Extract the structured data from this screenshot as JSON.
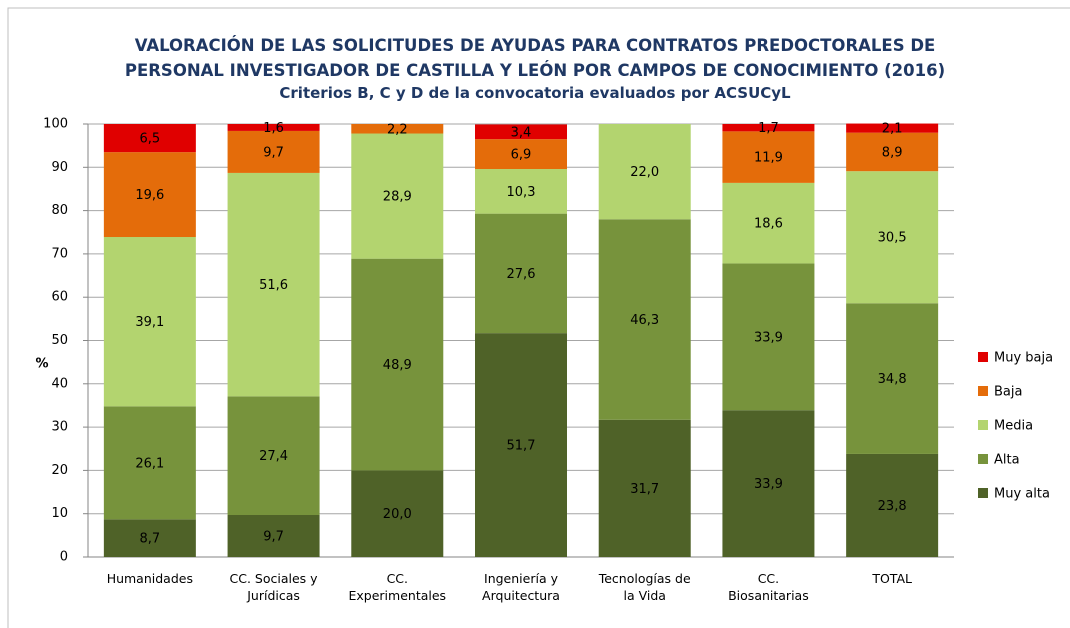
{
  "chart_data": {
    "type": "stacked_bar",
    "title": "VALORACIÓN DE LAS SOLICITUDES DE AYUDAS PARA CONTRATOS PREDOCTORALES DE PERSONAL INVESTIGADOR DE CASTILLA Y LEÓN POR CAMPOS DE CONOCIMIENTO (2016)",
    "subtitle": "Criterios B, C y D de la convocatoria evaluados por ACSUCyL",
    "y_label": "%",
    "categories": [
      "Humanidades",
      "CC. Sociales y Jurídicas",
      "CC. Experimentales",
      "Ingeniería y Arquitectura",
      "Tecnologías de la Vida",
      "CC. Biosanitarias",
      "TOTAL"
    ],
    "series": [
      {
        "name": "Muy alta",
        "color": "#4f6228",
        "values": [
          8.7,
          9.7,
          20.0,
          51.7,
          31.7,
          33.9,
          23.8
        ],
        "value_labels": [
          "8,7",
          "9,7",
          "20,0",
          "51,7",
          "31,7",
          "33,9",
          "23,8"
        ]
      },
      {
        "name": "Alta",
        "color": "#77933c",
        "values": [
          26.1,
          27.4,
          48.9,
          27.6,
          46.3,
          33.9,
          34.8
        ],
        "value_labels": [
          "26,1",
          "27,4",
          "48,9",
          "27,6",
          "46,3",
          "33,9",
          "34,8"
        ]
      },
      {
        "name": "Media",
        "color": "#b3d46f",
        "values": [
          39.1,
          51.6,
          28.9,
          10.3,
          22.0,
          18.6,
          30.5
        ],
        "value_labels": [
          "39,1",
          "51,6",
          "28,9",
          "10,3",
          "22,0",
          "18,6",
          "30,5"
        ]
      },
      {
        "name": "Baja",
        "color": "#e46c0a",
        "values": [
          19.6,
          9.7,
          2.2,
          6.9,
          null,
          11.9,
          8.9
        ],
        "value_labels": [
          "19,6",
          "9,7",
          "2,2",
          "6,9",
          null,
          "11,9",
          "8,9"
        ]
      },
      {
        "name": "Muy baja",
        "color": "#e00000",
        "values": [
          6.5,
          1.6,
          null,
          3.4,
          null,
          1.7,
          2.1
        ],
        "value_labels": [
          "6,5",
          "1,6",
          null,
          "3,4",
          null,
          "1,7",
          "2,1"
        ]
      }
    ],
    "ylim": [
      0,
      100
    ],
    "yticks": [
      0,
      10,
      20,
      30,
      40,
      50,
      60,
      70,
      80,
      90,
      100
    ],
    "grid": true,
    "legend": "right"
  }
}
